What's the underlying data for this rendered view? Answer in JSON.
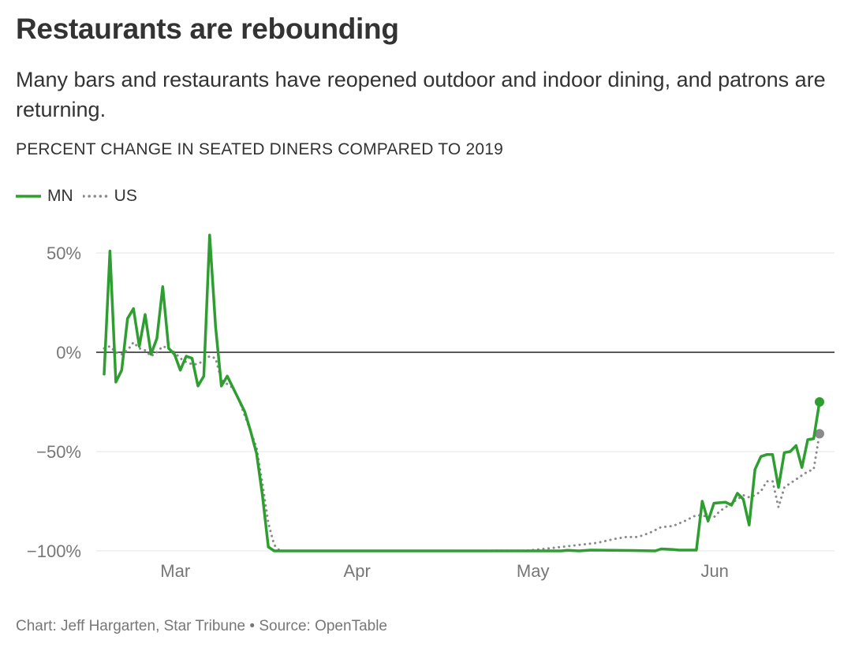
{
  "title": "Restaurants are rebounding",
  "subtitle": "Many bars and restaurants have reopened outdoor and indoor dining, and patrons are returning.",
  "ylabel": "PERCENT CHANGE IN SEATED DINERS COMPARED TO 2019",
  "footer": "Chart: Jeff Hargarten, Star Tribune • Source: OpenTable",
  "colors": {
    "mn": "#2e9e30",
    "us": "#8a8a8a",
    "zero": "#222222",
    "grid": "#e6e6e6",
    "tick": "#777777"
  },
  "chart_data": {
    "type": "line",
    "x_unit": "day of 2020",
    "xlim": [
      "2020-02-18",
      "2020-06-23"
    ],
    "ylim": [
      -100,
      60
    ],
    "y_ticks": [
      50,
      0,
      -50,
      -100
    ],
    "y_tick_labels": [
      "50%",
      "0%",
      "−50%",
      "−100%"
    ],
    "x_ticks": [
      "2020-03-01",
      "2020-04-01",
      "2020-05-01",
      "2020-06-01"
    ],
    "x_tick_labels": [
      "Mar",
      "Apr",
      "May",
      "Jun"
    ],
    "grid": true,
    "legend": "top-left",
    "series": [
      {
        "name": "MN",
        "style": "solid",
        "points": [
          [
            "2020-02-18",
            -11
          ],
          [
            "2020-02-19",
            51
          ],
          [
            "2020-02-20",
            -15
          ],
          [
            "2020-02-21",
            -9
          ],
          [
            "2020-02-22",
            17
          ],
          [
            "2020-02-23",
            22
          ],
          [
            "2020-02-24",
            3
          ],
          [
            "2020-02-25",
            19
          ],
          [
            "2020-02-26",
            -1
          ],
          [
            "2020-02-27",
            7
          ],
          [
            "2020-02-28",
            33
          ],
          [
            "2020-02-29",
            2
          ],
          [
            "2020-03-01",
            -1
          ],
          [
            "2020-03-02",
            -9
          ],
          [
            "2020-03-03",
            -2
          ],
          [
            "2020-03-04",
            -3
          ],
          [
            "2020-03-05",
            -17
          ],
          [
            "2020-03-06",
            -12
          ],
          [
            "2020-03-07",
            59
          ],
          [
            "2020-03-08",
            13
          ],
          [
            "2020-03-09",
            -17
          ],
          [
            "2020-03-10",
            -12
          ],
          [
            "2020-03-11",
            -18
          ],
          [
            "2020-03-12",
            -24
          ],
          [
            "2020-03-13",
            -30
          ],
          [
            "2020-03-14",
            -40
          ],
          [
            "2020-03-15",
            -51
          ],
          [
            "2020-03-16",
            -72
          ],
          [
            "2020-03-17",
            -98
          ],
          [
            "2020-03-18",
            -100
          ],
          [
            "2020-03-19",
            -100
          ],
          [
            "2020-04-15",
            -100
          ],
          [
            "2020-05-06",
            -100
          ],
          [
            "2020-05-07",
            -99.7
          ],
          [
            "2020-05-09",
            -100
          ],
          [
            "2020-05-11",
            -99.6
          ],
          [
            "2020-05-18",
            -99.8
          ],
          [
            "2020-05-22",
            -100
          ],
          [
            "2020-05-23",
            -99
          ],
          [
            "2020-05-25",
            -99.3
          ],
          [
            "2020-05-26",
            -99.6
          ],
          [
            "2020-05-29",
            -99.6
          ],
          [
            "2020-05-30",
            -75
          ],
          [
            "2020-05-31",
            -85
          ],
          [
            "2020-06-01",
            -76
          ],
          [
            "2020-06-03",
            -75.5
          ],
          [
            "2020-06-04",
            -77
          ],
          [
            "2020-06-05",
            -71
          ],
          [
            "2020-06-06",
            -74
          ],
          [
            "2020-06-07",
            -87
          ],
          [
            "2020-06-08",
            -59
          ],
          [
            "2020-06-09",
            -52.5
          ],
          [
            "2020-06-10",
            -51.5
          ],
          [
            "2020-06-11",
            -51.5
          ],
          [
            "2020-06-12",
            -68
          ],
          [
            "2020-06-13",
            -50.5
          ],
          [
            "2020-06-14",
            -50
          ],
          [
            "2020-06-15",
            -47
          ],
          [
            "2020-06-16",
            -58
          ],
          [
            "2020-06-17",
            -44
          ],
          [
            "2020-06-18",
            -43.5
          ],
          [
            "2020-06-19",
            -25
          ]
        ]
      },
      {
        "name": "US",
        "style": "dotted",
        "points": [
          [
            "2020-02-18",
            2
          ],
          [
            "2020-02-19",
            3
          ],
          [
            "2020-02-20",
            0
          ],
          [
            "2020-02-21",
            -1
          ],
          [
            "2020-02-22",
            1
          ],
          [
            "2020-02-23",
            5
          ],
          [
            "2020-02-24",
            2
          ],
          [
            "2020-02-25",
            1
          ],
          [
            "2020-02-26",
            -2
          ],
          [
            "2020-02-27",
            0
          ],
          [
            "2020-02-28",
            3
          ],
          [
            "2020-02-29",
            2
          ],
          [
            "2020-03-01",
            0
          ],
          [
            "2020-03-02",
            -3
          ],
          [
            "2020-03-03",
            -5
          ],
          [
            "2020-03-04",
            -6
          ],
          [
            "2020-03-05",
            -6
          ],
          [
            "2020-03-06",
            -4
          ],
          [
            "2020-03-07",
            -2
          ],
          [
            "2020-03-08",
            -3
          ],
          [
            "2020-03-09",
            -14
          ],
          [
            "2020-03-10",
            -16
          ],
          [
            "2020-03-11",
            -18
          ],
          [
            "2020-03-12",
            -24
          ],
          [
            "2020-03-13",
            -32
          ],
          [
            "2020-03-14",
            -40
          ],
          [
            "2020-03-15",
            -48
          ],
          [
            "2020-03-16",
            -66
          ],
          [
            "2020-03-17",
            -86
          ],
          [
            "2020-03-18",
            -97
          ],
          [
            "2020-03-19",
            -100
          ],
          [
            "2020-04-15",
            -100
          ],
          [
            "2020-04-30",
            -99.9
          ],
          [
            "2020-05-03",
            -99
          ],
          [
            "2020-05-06",
            -98
          ],
          [
            "2020-05-09",
            -97
          ],
          [
            "2020-05-12",
            -96
          ],
          [
            "2020-05-15",
            -94
          ],
          [
            "2020-05-17",
            -93
          ],
          [
            "2020-05-19",
            -93
          ],
          [
            "2020-05-21",
            -91
          ],
          [
            "2020-05-23",
            -88
          ],
          [
            "2020-05-25",
            -87.5
          ],
          [
            "2020-05-27",
            -85
          ],
          [
            "2020-05-29",
            -82
          ],
          [
            "2020-06-01",
            -83
          ],
          [
            "2020-06-02",
            -80
          ],
          [
            "2020-06-04",
            -76
          ],
          [
            "2020-06-06",
            -72
          ],
          [
            "2020-06-07",
            -73
          ],
          [
            "2020-06-08",
            -72
          ],
          [
            "2020-06-09",
            -70
          ],
          [
            "2020-06-10",
            -65
          ],
          [
            "2020-06-11",
            -65
          ],
          [
            "2020-06-12",
            -78
          ],
          [
            "2020-06-13",
            -68
          ],
          [
            "2020-06-14",
            -66
          ],
          [
            "2020-06-15",
            -64
          ],
          [
            "2020-06-16",
            -62
          ],
          [
            "2020-06-17",
            -60
          ],
          [
            "2020-06-18",
            -59
          ],
          [
            "2020-06-19",
            -41
          ]
        ]
      }
    ]
  }
}
